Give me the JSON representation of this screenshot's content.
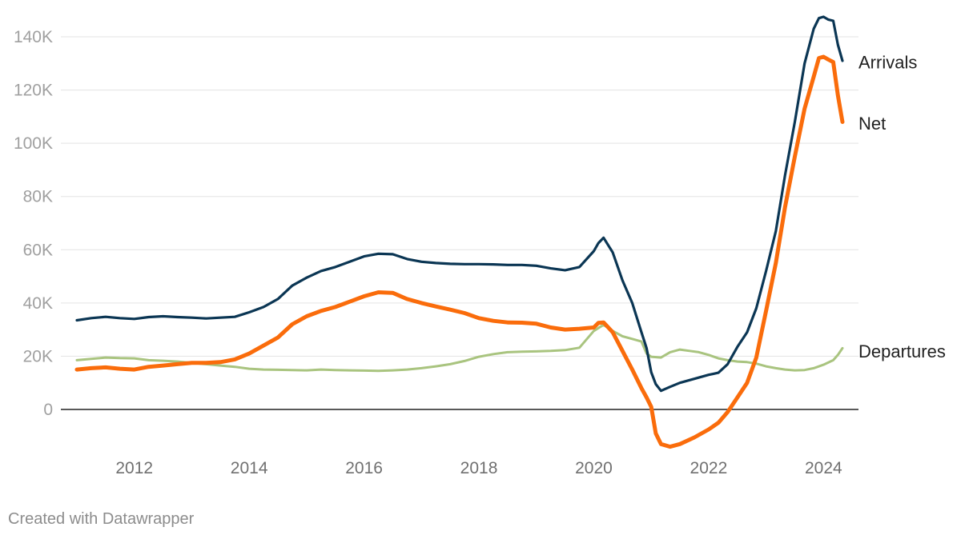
{
  "credit": "Created with Datawrapper",
  "chart_data": {
    "type": "line",
    "title": "",
    "xlabel": "",
    "ylabel": "",
    "xlim": [
      2011.0,
      2024.33
    ],
    "ylim": [
      -15000,
      150000
    ],
    "y_ticks": [
      0,
      20000,
      40000,
      60000,
      80000,
      100000,
      120000,
      140000
    ],
    "y_tick_labels": [
      "0",
      "20K",
      "40K",
      "60K",
      "80K",
      "100K",
      "120K",
      "140K"
    ],
    "x_ticks": [
      2012,
      2014,
      2016,
      2018,
      2020,
      2022,
      2024
    ],
    "x_tick_labels": [
      "2012",
      "2014",
      "2016",
      "2018",
      "2020",
      "2022",
      "2024"
    ],
    "grid": true,
    "legend": "direct labels at line ends (right)",
    "series": [
      {
        "name": "Departures",
        "color": "#a9c47f",
        "points": [
          [
            2011.0,
            18500
          ],
          [
            2011.25,
            19000
          ],
          [
            2011.5,
            19500
          ],
          [
            2011.75,
            19300
          ],
          [
            2012.0,
            19200
          ],
          [
            2012.25,
            18500
          ],
          [
            2012.5,
            18300
          ],
          [
            2012.75,
            18000
          ],
          [
            2013.0,
            17500
          ],
          [
            2013.25,
            17000
          ],
          [
            2013.5,
            16500
          ],
          [
            2013.75,
            16000
          ],
          [
            2014.0,
            15300
          ],
          [
            2014.25,
            15000
          ],
          [
            2014.5,
            14900
          ],
          [
            2014.75,
            14800
          ],
          [
            2015.0,
            14700
          ],
          [
            2015.25,
            15000
          ],
          [
            2015.5,
            14800
          ],
          [
            2015.75,
            14700
          ],
          [
            2016.0,
            14600
          ],
          [
            2016.25,
            14500
          ],
          [
            2016.5,
            14700
          ],
          [
            2016.75,
            15000
          ],
          [
            2017.0,
            15500
          ],
          [
            2017.25,
            16200
          ],
          [
            2017.5,
            17000
          ],
          [
            2017.75,
            18200
          ],
          [
            2018.0,
            19800
          ],
          [
            2018.25,
            20800
          ],
          [
            2018.5,
            21500
          ],
          [
            2018.75,
            21700
          ],
          [
            2019.0,
            21800
          ],
          [
            2019.25,
            22000
          ],
          [
            2019.5,
            22300
          ],
          [
            2019.75,
            23200
          ],
          [
            2020.0,
            29500
          ],
          [
            2020.17,
            31800
          ],
          [
            2020.33,
            29500
          ],
          [
            2020.5,
            27500
          ],
          [
            2020.67,
            26500
          ],
          [
            2020.83,
            25500
          ],
          [
            2020.92,
            21000
          ],
          [
            2021.0,
            19800
          ],
          [
            2021.17,
            19500
          ],
          [
            2021.33,
            21500
          ],
          [
            2021.5,
            22500
          ],
          [
            2021.67,
            22000
          ],
          [
            2021.83,
            21500
          ],
          [
            2022.0,
            20500
          ],
          [
            2022.17,
            19200
          ],
          [
            2022.33,
            18500
          ],
          [
            2022.5,
            18000
          ],
          [
            2022.67,
            17800
          ],
          [
            2022.83,
            17200
          ],
          [
            2023.0,
            16200
          ],
          [
            2023.17,
            15500
          ],
          [
            2023.33,
            15000
          ],
          [
            2023.5,
            14700
          ],
          [
            2023.67,
            14800
          ],
          [
            2023.83,
            15500
          ],
          [
            2024.0,
            16800
          ],
          [
            2024.17,
            18500
          ],
          [
            2024.25,
            20500
          ],
          [
            2024.33,
            23000
          ]
        ]
      },
      {
        "name": "Arrivals",
        "color": "#0b3654",
        "points": [
          [
            2011.0,
            33500
          ],
          [
            2011.25,
            34300
          ],
          [
            2011.5,
            34800
          ],
          [
            2011.75,
            34300
          ],
          [
            2012.0,
            34000
          ],
          [
            2012.25,
            34700
          ],
          [
            2012.5,
            35000
          ],
          [
            2012.75,
            34700
          ],
          [
            2013.0,
            34500
          ],
          [
            2013.25,
            34200
          ],
          [
            2013.5,
            34500
          ],
          [
            2013.75,
            34800
          ],
          [
            2014.0,
            36500
          ],
          [
            2014.25,
            38500
          ],
          [
            2014.5,
            41500
          ],
          [
            2014.75,
            46500
          ],
          [
            2015.0,
            49500
          ],
          [
            2015.25,
            52000
          ],
          [
            2015.5,
            53500
          ],
          [
            2015.75,
            55500
          ],
          [
            2016.0,
            57500
          ],
          [
            2016.25,
            58500
          ],
          [
            2016.5,
            58300
          ],
          [
            2016.75,
            56500
          ],
          [
            2017.0,
            55500
          ],
          [
            2017.25,
            55000
          ],
          [
            2017.5,
            54700
          ],
          [
            2017.75,
            54600
          ],
          [
            2018.0,
            54600
          ],
          [
            2018.25,
            54500
          ],
          [
            2018.5,
            54300
          ],
          [
            2018.75,
            54300
          ],
          [
            2019.0,
            54000
          ],
          [
            2019.25,
            53000
          ],
          [
            2019.5,
            52300
          ],
          [
            2019.75,
            53500
          ],
          [
            2020.0,
            59500
          ],
          [
            2020.08,
            62500
          ],
          [
            2020.17,
            64500
          ],
          [
            2020.33,
            59000
          ],
          [
            2020.5,
            48500
          ],
          [
            2020.67,
            40000
          ],
          [
            2020.83,
            29000
          ],
          [
            2020.92,
            23000
          ],
          [
            2021.0,
            14000
          ],
          [
            2021.08,
            9500
          ],
          [
            2021.17,
            7000
          ],
          [
            2021.33,
            8500
          ],
          [
            2021.5,
            10000
          ],
          [
            2021.75,
            11500
          ],
          [
            2022.0,
            13000
          ],
          [
            2022.17,
            13800
          ],
          [
            2022.33,
            17000
          ],
          [
            2022.5,
            23500
          ],
          [
            2022.67,
            29000
          ],
          [
            2022.83,
            38000
          ],
          [
            2023.0,
            52000
          ],
          [
            2023.17,
            67000
          ],
          [
            2023.33,
            88000
          ],
          [
            2023.5,
            108000
          ],
          [
            2023.67,
            130000
          ],
          [
            2023.83,
            143000
          ],
          [
            2023.92,
            147000
          ],
          [
            2024.0,
            147500
          ],
          [
            2024.08,
            146500
          ],
          [
            2024.17,
            146000
          ],
          [
            2024.25,
            137000
          ],
          [
            2024.33,
            131000
          ]
        ]
      },
      {
        "name": "Net",
        "color": "#fa6c0b",
        "points": [
          [
            2011.0,
            15000
          ],
          [
            2011.25,
            15500
          ],
          [
            2011.5,
            15800
          ],
          [
            2011.75,
            15300
          ],
          [
            2012.0,
            15000
          ],
          [
            2012.25,
            16000
          ],
          [
            2012.5,
            16500
          ],
          [
            2012.75,
            17000
          ],
          [
            2013.0,
            17500
          ],
          [
            2013.25,
            17500
          ],
          [
            2013.5,
            17800
          ],
          [
            2013.75,
            18800
          ],
          [
            2014.0,
            21000
          ],
          [
            2014.25,
            24000
          ],
          [
            2014.5,
            27000
          ],
          [
            2014.75,
            32000
          ],
          [
            2015.0,
            35000
          ],
          [
            2015.25,
            37000
          ],
          [
            2015.5,
            38500
          ],
          [
            2015.75,
            40500
          ],
          [
            2016.0,
            42500
          ],
          [
            2016.25,
            44000
          ],
          [
            2016.5,
            43800
          ],
          [
            2016.75,
            41500
          ],
          [
            2017.0,
            40000
          ],
          [
            2017.25,
            38700
          ],
          [
            2017.5,
            37500
          ],
          [
            2017.75,
            36200
          ],
          [
            2018.0,
            34300
          ],
          [
            2018.25,
            33300
          ],
          [
            2018.5,
            32700
          ],
          [
            2018.75,
            32600
          ],
          [
            2019.0,
            32200
          ],
          [
            2019.25,
            30800
          ],
          [
            2019.5,
            30000
          ],
          [
            2019.75,
            30300
          ],
          [
            2020.0,
            30800
          ],
          [
            2020.08,
            32500
          ],
          [
            2020.17,
            32700
          ],
          [
            2020.33,
            29000
          ],
          [
            2020.5,
            22000
          ],
          [
            2020.67,
            15000
          ],
          [
            2020.83,
            8000
          ],
          [
            2020.92,
            4500
          ],
          [
            2021.0,
            1000
          ],
          [
            2021.08,
            -9000
          ],
          [
            2021.17,
            -13000
          ],
          [
            2021.33,
            -14000
          ],
          [
            2021.5,
            -13000
          ],
          [
            2021.75,
            -10500
          ],
          [
            2022.0,
            -7500
          ],
          [
            2022.17,
            -5000
          ],
          [
            2022.33,
            -1000
          ],
          [
            2022.5,
            4500
          ],
          [
            2022.67,
            10000
          ],
          [
            2022.83,
            19500
          ],
          [
            2023.0,
            37000
          ],
          [
            2023.17,
            55000
          ],
          [
            2023.33,
            76000
          ],
          [
            2023.5,
            95000
          ],
          [
            2023.67,
            113000
          ],
          [
            2023.83,
            125000
          ],
          [
            2023.92,
            132000
          ],
          [
            2024.0,
            132500
          ],
          [
            2024.08,
            131500
          ],
          [
            2024.17,
            130500
          ],
          [
            2024.25,
            118000
          ],
          [
            2024.33,
            108000
          ]
        ]
      }
    ],
    "end_labels": [
      {
        "series": "Arrivals",
        "text": "Arrivals",
        "y": 130500
      },
      {
        "series": "Net",
        "text": "Net",
        "y": 107500
      },
      {
        "series": "Departures",
        "text": "Departures",
        "y": 22000
      }
    ]
  }
}
